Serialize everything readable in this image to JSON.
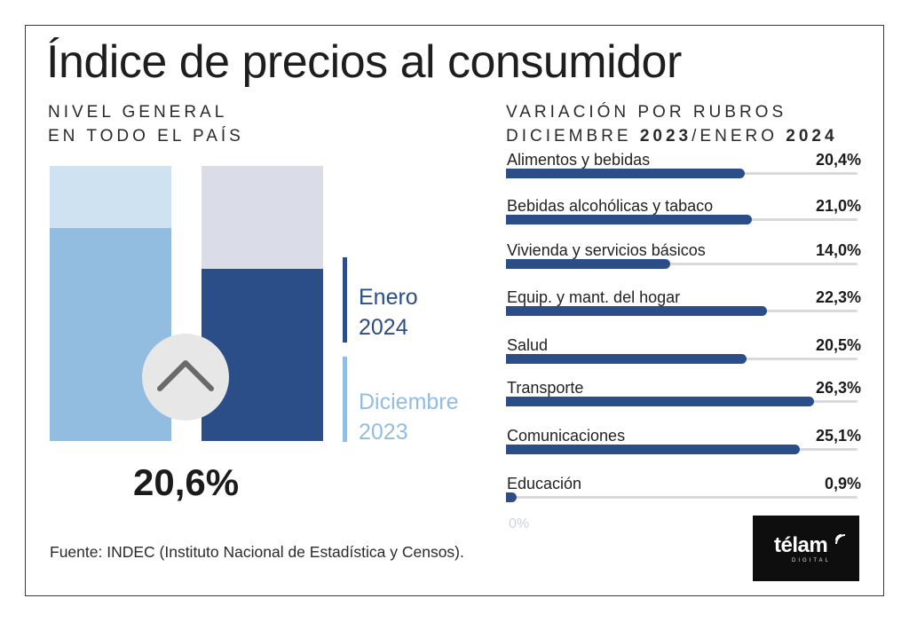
{
  "title": "Índice de precios al consumidor",
  "left_subtitle": {
    "line1": "NIVEL GENERAL",
    "line2": "EN TODO EL PAÍS"
  },
  "right_subtitle": {
    "line1": "VARIACIÓN POR RUBROS",
    "line2_prefix": "DICIEMBRE ",
    "year1": "2023",
    "sep": "/ENERO ",
    "year2": "2024"
  },
  "legend": {
    "current": {
      "month": "Enero",
      "year": "2024",
      "color": "#2b4e89"
    },
    "previous": {
      "month": "Diciembre",
      "year": "2023",
      "color": "#92bde0"
    }
  },
  "headline_value": "20,6%",
  "zero_label": "0%",
  "source": "Fuente: INDEC (Instituto Nacional de Estadística y Censos).",
  "logo": {
    "word": "télam",
    "sub": "DIGITAL"
  },
  "icons": {
    "trend": "chevron-up-icon",
    "logo_signal": "signal-icon"
  },
  "chart_data": [
    {
      "type": "bar",
      "title": "NIVEL GENERAL EN TODO EL PAÍS",
      "categories": [
        "Diciembre 2023",
        "Enero 2024"
      ],
      "values": [
        25.5,
        20.6
      ],
      "value_label": "20,6%",
      "ylim": [
        0,
        33
      ],
      "colors": [
        "#92bde0",
        "#2b4e89"
      ]
    },
    {
      "type": "bar",
      "orientation": "horizontal",
      "title": "VARIACIÓN POR RUBROS DICIEMBRE 2023/ENERO 2024",
      "xlim": [
        0,
        30
      ],
      "categories": [
        "Alimentos y bebidas",
        "Bebidas alcohólicas y tabaco",
        "Vivienda y servicios básicos",
        "Equip. y mant. del hogar",
        "Salud",
        "Transporte",
        "Comunicaciones",
        "Educación"
      ],
      "values": [
        20.4,
        21.0,
        14.0,
        22.3,
        20.5,
        26.3,
        25.1,
        0.9
      ],
      "labels": [
        "20,4%",
        "21,0%",
        "14,0%",
        "22,3%",
        "20,5%",
        "26,3%",
        "25,1%",
        "0,9%"
      ],
      "color": "#2b4e89"
    }
  ]
}
